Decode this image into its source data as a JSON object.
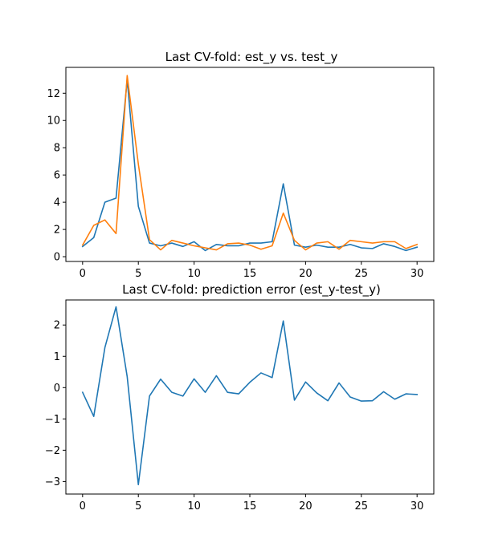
{
  "chart_data": [
    {
      "type": "line",
      "title": "Last CV-fold: est_y vs. test_y",
      "xlabel": "",
      "ylabel": "",
      "xlim": [
        -1.5,
        31.5
      ],
      "ylim": [
        -0.35,
        13.9
      ],
      "xticks": [
        0,
        5,
        10,
        15,
        20,
        25,
        30
      ],
      "yticks": [
        0,
        2,
        4,
        6,
        8,
        10,
        12
      ],
      "grid": false,
      "x": [
        0,
        1,
        2,
        3,
        4,
        5,
        6,
        7,
        8,
        9,
        10,
        11,
        12,
        13,
        14,
        15,
        16,
        17,
        18,
        19,
        20,
        21,
        22,
        23,
        24,
        25,
        26,
        27,
        28,
        29,
        30
      ],
      "series": [
        {
          "color": "#1f77b4",
          "values": [
            0.75,
            1.4,
            4.0,
            4.3,
            13.0,
            3.7,
            1.0,
            0.8,
            1.0,
            0.75,
            1.1,
            0.45,
            0.9,
            0.8,
            0.8,
            1.0,
            1.0,
            1.1,
            5.35,
            0.85,
            0.7,
            0.85,
            0.7,
            0.7,
            0.9,
            0.65,
            0.6,
            0.95,
            0.75,
            0.45,
            0.7
          ]
        },
        {
          "color": "#ff7f0e",
          "values": [
            0.85,
            2.3,
            2.7,
            1.7,
            13.3,
            6.8,
            1.25,
            0.5,
            1.2,
            1.0,
            0.8,
            0.65,
            0.5,
            0.95,
            1.0,
            0.85,
            0.55,
            0.8,
            3.2,
            1.2,
            0.5,
            1.0,
            1.1,
            0.55,
            1.2,
            1.1,
            1.0,
            1.1,
            1.1,
            0.6,
            0.9
          ]
        }
      ]
    },
    {
      "type": "line",
      "title": "Last CV-fold: prediction error (est_y-test_y)",
      "xlabel": "",
      "ylabel": "",
      "xlim": [
        -1.5,
        31.5
      ],
      "ylim": [
        -3.4,
        2.8
      ],
      "xticks": [
        0,
        5,
        10,
        15,
        20,
        25,
        30
      ],
      "yticks": [
        -3,
        -2,
        -1,
        0,
        1,
        2
      ],
      "grid": false,
      "x": [
        0,
        1,
        2,
        3,
        4,
        5,
        6,
        7,
        8,
        9,
        10,
        11,
        12,
        13,
        14,
        15,
        16,
        17,
        18,
        19,
        20,
        21,
        22,
        23,
        24,
        25,
        26,
        27,
        28,
        29,
        30
      ],
      "series": [
        {
          "color": "#1f77b4",
          "values": [
            -0.15,
            -0.92,
            1.28,
            2.58,
            0.35,
            -3.1,
            -0.27,
            0.27,
            -0.15,
            -0.27,
            0.28,
            -0.15,
            0.38,
            -0.15,
            -0.2,
            0.17,
            0.47,
            0.32,
            2.13,
            -0.4,
            0.18,
            -0.17,
            -0.42,
            0.15,
            -0.3,
            -0.43,
            -0.42,
            -0.13,
            -0.37,
            -0.2,
            -0.22
          ]
        }
      ]
    }
  ]
}
